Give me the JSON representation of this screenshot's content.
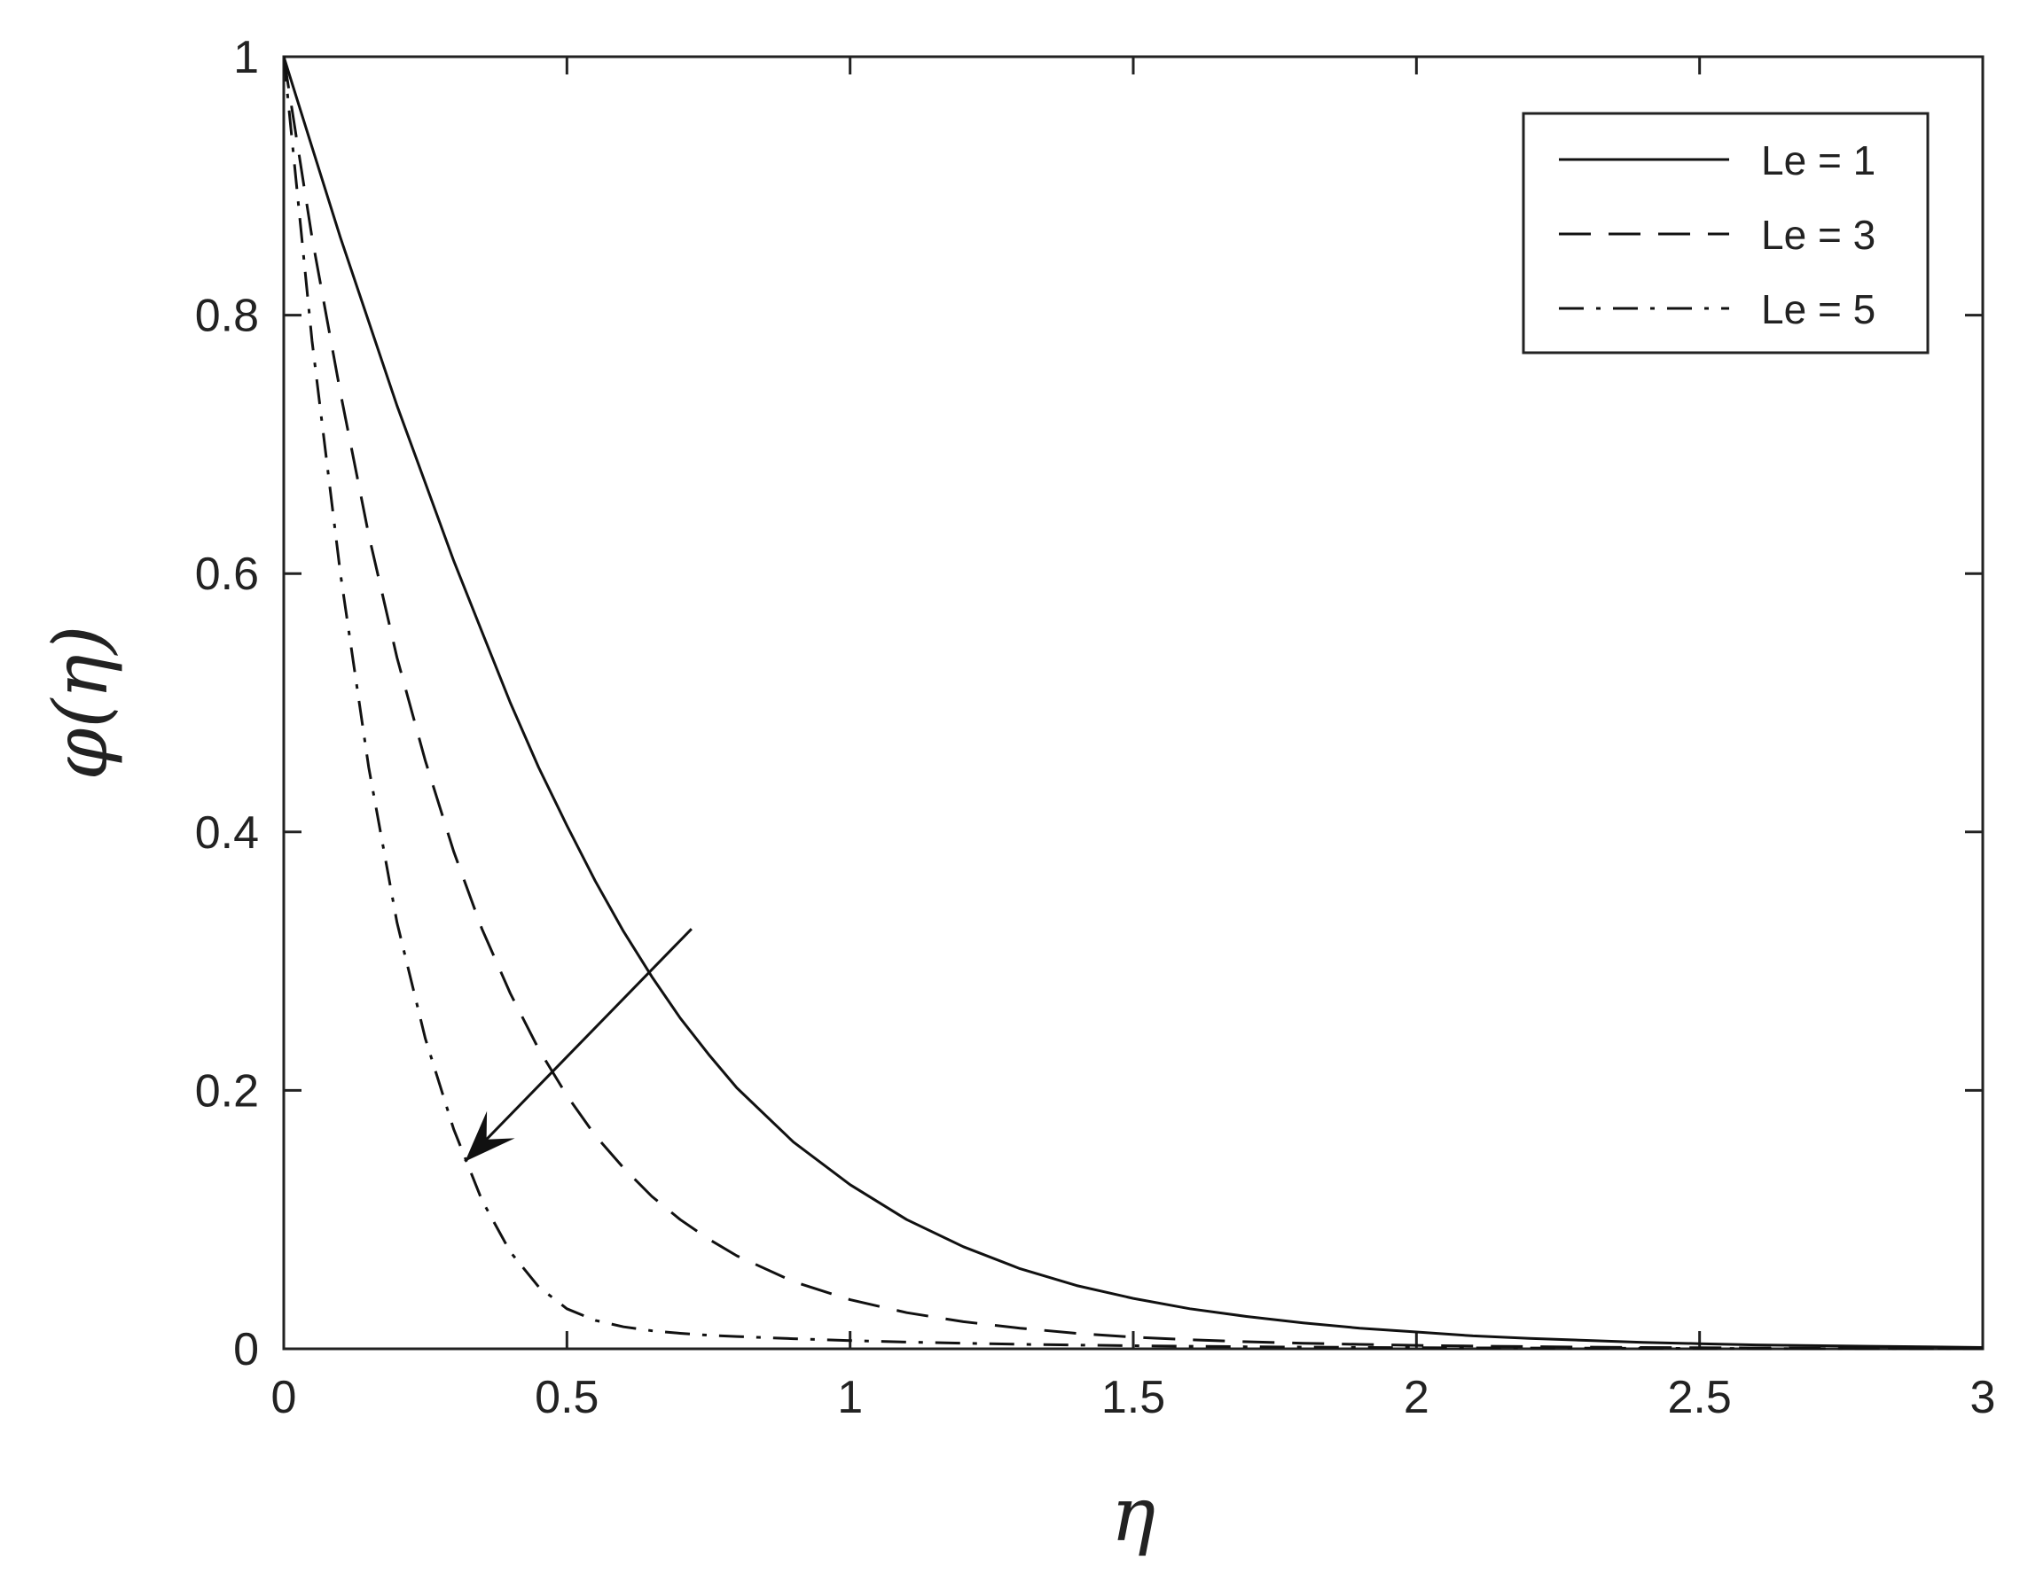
{
  "chart_data": {
    "type": "line",
    "title": "",
    "xlabel": "η",
    "ylabel": "φ(η)",
    "xlim": [
      0,
      3
    ],
    "ylim": [
      0,
      1
    ],
    "xticks": [
      "0",
      "0.5",
      "1",
      "1.5",
      "2",
      "2.5",
      "3"
    ],
    "yticks": [
      "0",
      "0.2",
      "0.4",
      "0.6",
      "0.8",
      "1"
    ],
    "grid": false,
    "legend_position": "top-right",
    "x": [
      0,
      0.05,
      0.1,
      0.15,
      0.2,
      0.25,
      0.3,
      0.35,
      0.4,
      0.45,
      0.5,
      0.55,
      0.6,
      0.65,
      0.7,
      0.75,
      0.8,
      0.9,
      1.0,
      1.1,
      1.2,
      1.3,
      1.4,
      1.5,
      1.6,
      1.7,
      1.8,
      1.9,
      2.0,
      2.1,
      2.2,
      2.3,
      2.4,
      2.5,
      2.6,
      2.7,
      2.8,
      2.9,
      3.0
    ],
    "series": [
      {
        "name": "Le = 1",
        "color": "#111111",
        "dash": "solid",
        "values": [
          1.0,
          0.93,
          0.86,
          0.795,
          0.73,
          0.67,
          0.61,
          0.555,
          0.5,
          0.45,
          0.405,
          0.362,
          0.323,
          0.288,
          0.256,
          0.228,
          0.202,
          0.16,
          0.127,
          0.1,
          0.079,
          0.062,
          0.049,
          0.039,
          0.031,
          0.025,
          0.02,
          0.016,
          0.013,
          0.01,
          0.008,
          0.0065,
          0.005,
          0.004,
          0.003,
          0.0025,
          0.002,
          0.0015,
          0.001
        ]
      },
      {
        "name": "Le = 3",
        "color": "#111111",
        "dash": "dashed",
        "values": [
          1.0,
          0.86,
          0.74,
          0.63,
          0.535,
          0.455,
          0.385,
          0.325,
          0.275,
          0.232,
          0.196,
          0.165,
          0.14,
          0.118,
          0.1,
          0.085,
          0.072,
          0.052,
          0.038,
          0.028,
          0.021,
          0.016,
          0.012,
          0.009,
          0.007,
          0.0055,
          0.0043,
          0.0034,
          0.0027,
          0.0021,
          0.0017,
          0.0013,
          0.001,
          0.0008,
          0.0006,
          0.0005,
          0.0004,
          0.0003,
          0.0002
        ]
      },
      {
        "name": "Le = 5",
        "color": "#111111",
        "dash": "dashdot",
        "values": [
          1.0,
          0.78,
          0.6,
          0.45,
          0.33,
          0.24,
          0.17,
          0.115,
          0.075,
          0.048,
          0.031,
          0.022,
          0.017,
          0.014,
          0.012,
          0.0105,
          0.0095,
          0.0078,
          0.0064,
          0.0052,
          0.0043,
          0.0035,
          0.0029,
          0.0024,
          0.002,
          0.0016,
          0.0013,
          0.0011,
          0.0009,
          0.0007,
          0.0006,
          0.0005,
          0.0004,
          0.0003,
          0.0002,
          0.0002,
          0.0001,
          0.0001,
          0.0
        ]
      }
    ],
    "annotations": [
      {
        "type": "arrow",
        "from": [
          0.72,
          0.325
        ],
        "to": [
          0.32,
          0.145
        ],
        "meaning": "increasing Le"
      }
    ]
  }
}
